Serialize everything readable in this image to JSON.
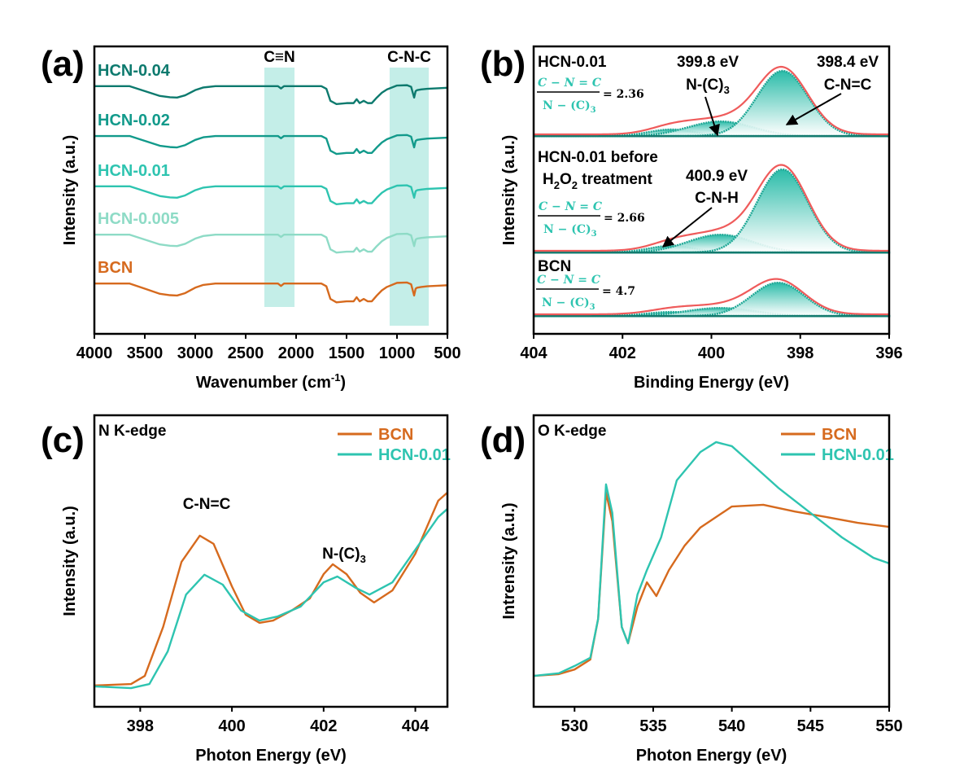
{
  "chart_data": [
    {
      "panel": "(a)",
      "type": "line",
      "xlabel": "Wavenumber (cm",
      "xlabel_sup": "-1",
      "xlabel_end": ")",
      "ylabel": "Intensity (a.u.)",
      "xlim": [
        4000,
        500
      ],
      "ylim": [
        0,
        6
      ],
      "xticks": [
        4000,
        3500,
        3000,
        2500,
        2000,
        1500,
        1000,
        500
      ],
      "bands": [
        {
          "label": "C≡N",
          "range": [
            2315,
            2016
          ],
          "color": "#c4eee8"
        },
        {
          "label": "C-N-C",
          "range": [
            1073,
            685
          ],
          "color": "#c4eee8"
        }
      ],
      "x": [
        4000,
        3650,
        3500,
        3350,
        3250,
        3180,
        3100,
        3000,
        2920,
        2800,
        2300,
        2180,
        2150,
        2120,
        1750,
        1700,
        1660,
        1600,
        1500,
        1430,
        1400,
        1370,
        1330,
        1290,
        1250,
        1200,
        1150,
        1100,
        1000,
        900,
        860,
        830,
        815,
        800,
        760,
        700,
        500
      ],
      "shape": [
        0,
        0,
        -0.15,
        -0.3,
        -0.34,
        -0.35,
        -0.28,
        -0.12,
        -0.04,
        0,
        0,
        0,
        -0.07,
        0,
        0,
        -0.08,
        -0.45,
        -0.55,
        -0.52,
        -0.52,
        -0.4,
        -0.52,
        -0.45,
        -0.52,
        -0.52,
        -0.35,
        -0.2,
        -0.1,
        0.02,
        0.03,
        -0.02,
        -0.35,
        -0.15,
        -0.12,
        -0.1,
        -0.08,
        -0.05
      ],
      "series": [
        {
          "name": "HCN-0.04",
          "offset": 5.17,
          "color": "#0d7a6e"
        },
        {
          "name": "HCN-0.02",
          "offset": 4.13,
          "color": "#129a8b"
        },
        {
          "name": "HCN-0.01",
          "offset": 3.08,
          "color": "#2ec4b0"
        },
        {
          "name": "HCN-0.005",
          "offset": 2.07,
          "color": "#8edbc6"
        },
        {
          "name": "BCN",
          "offset": 1.05,
          "color": "#d66a1e"
        }
      ]
    },
    {
      "panel": "(b)",
      "type": "line",
      "xlabel": "Binding Energy (eV)",
      "ylabel": "Intensity (a.u.)",
      "xlim": [
        404,
        396
      ],
      "ylim": [
        0,
        100
      ],
      "xticks": [
        404,
        402,
        400,
        398,
        396
      ],
      "envelope_color": "#ef5b5b",
      "component_color": "#1fa896",
      "peak_labels": [
        {
          "energy": "399.8 eV",
          "species": "N-(C)",
          "sub": "3"
        },
        {
          "energy": "398.4 eV",
          "species": "C-N=C"
        },
        {
          "energy": "400.9 eV",
          "species": "C-N-H"
        }
      ],
      "ratio_num": "C − N = C",
      "ratio_den": "N − (C)",
      "ratio_den_sub": "3",
      "stacks": [
        {
          "name": "HCN-0.01",
          "baseline": 68.8,
          "ratio": "= 2.36",
          "components": [
            {
              "center": 398.4,
              "height": 22.7,
              "fwhm": 1.35
            },
            {
              "center": 399.8,
              "height": 5.1,
              "fwhm": 1.7
            },
            {
              "center": 400.9,
              "height": 2.3,
              "fwhm": 1.2
            }
          ]
        },
        {
          "name": "HCN-0.01 before",
          "name2a": "H",
          "name2sub1": "2",
          "name2b": "O",
          "name2sub2": "2",
          "name2c": " treatment",
          "baseline": 28.3,
          "ratio": "= 2.66",
          "components": [
            {
              "center": 398.4,
              "height": 28.9,
              "fwhm": 1.35
            },
            {
              "center": 399.8,
              "height": 6.2,
              "fwhm": 1.7
            },
            {
              "center": 400.9,
              "height": 2.3,
              "fwhm": 1.2
            }
          ]
        },
        {
          "name": "BCN",
          "baseline": 6.2,
          "ratio": "= 4.7",
          "components": [
            {
              "center": 398.5,
              "height": 11.6,
              "fwhm": 1.4
            },
            {
              "center": 399.8,
              "height": 2.8,
              "fwhm": 1.8
            },
            {
              "center": 400.9,
              "height": 1.4,
              "fwhm": 1.3
            }
          ]
        }
      ]
    },
    {
      "panel": "(c)",
      "type": "line",
      "title": "N K-edge",
      "xlabel": "Photon Energy (eV)",
      "ylabel": "Intensity (a.u.)",
      "xlim": [
        397,
        404.7
      ],
      "ylim": [
        0,
        1
      ],
      "xticks": [
        398,
        400,
        402,
        404
      ],
      "legend": "top-right",
      "annotations": [
        {
          "text": "C-N=C",
          "x": 399.3,
          "y": 0.6
        },
        {
          "text": "N-(C)",
          "sub": "3",
          "x": 402.1,
          "y": 0.5
        }
      ],
      "series": [
        {
          "name": "BCN",
          "color": "#d66a1e",
          "x": [
            397,
            397.8,
            398.1,
            398.5,
            398.9,
            399.3,
            399.6,
            400,
            400.3,
            400.6,
            400.9,
            401.3,
            401.7,
            402.0,
            402.2,
            402.5,
            402.8,
            403.1,
            403.5,
            404,
            404.5,
            404.7
          ],
          "y": [
            0.073,
            0.078,
            0.106,
            0.274,
            0.497,
            0.587,
            0.559,
            0.413,
            0.316,
            0.288,
            0.296,
            0.33,
            0.372,
            0.455,
            0.489,
            0.455,
            0.391,
            0.358,
            0.399,
            0.525,
            0.707,
            0.735
          ]
        },
        {
          "name": "HCN-0.01",
          "color": "#2ec4b0",
          "x": [
            397,
            397.8,
            398.2,
            398.6,
            399,
            399.4,
            399.8,
            400.2,
            400.6,
            401,
            401.5,
            402,
            402.3,
            402.7,
            403,
            403.5,
            404,
            404.5,
            404.7
          ],
          "y": [
            0.07,
            0.064,
            0.078,
            0.19,
            0.385,
            0.453,
            0.419,
            0.33,
            0.296,
            0.31,
            0.344,
            0.427,
            0.447,
            0.408,
            0.385,
            0.427,
            0.539,
            0.651,
            0.679
          ]
        }
      ]
    },
    {
      "panel": "(d)",
      "type": "line",
      "title": "O K-edge",
      "xlabel": "Photon Energy (eV)",
      "ylabel": "Intrensity (a.u.)",
      "xlim": [
        527.4,
        550
      ],
      "ylim": [
        0,
        1
      ],
      "xticks": [
        530,
        535,
        540,
        545,
        550
      ],
      "legend": "top-right",
      "series": [
        {
          "name": "BCN",
          "color": "#d66a1e",
          "x": [
            527.4,
            529,
            530,
            531,
            531.5,
            532,
            532.4,
            533,
            533.4,
            534,
            534.6,
            535.2,
            536,
            537,
            538,
            540,
            542,
            544,
            546,
            548,
            550
          ],
          "y": [
            0.106,
            0.112,
            0.128,
            0.162,
            0.302,
            0.735,
            0.637,
            0.274,
            0.218,
            0.344,
            0.427,
            0.38,
            0.469,
            0.553,
            0.615,
            0.687,
            0.693,
            0.67,
            0.651,
            0.631,
            0.617
          ]
        },
        {
          "name": "HCN-0.01",
          "color": "#2ec4b0",
          "x": [
            527.4,
            529,
            530,
            531,
            531.5,
            532,
            532.4,
            533,
            533.4,
            534,
            534.6,
            535.5,
            536.5,
            538,
            539,
            540,
            541,
            543,
            545,
            547,
            549,
            550
          ],
          "y": [
            0.106,
            0.115,
            0.14,
            0.168,
            0.302,
            0.763,
            0.665,
            0.274,
            0.218,
            0.385,
            0.469,
            0.581,
            0.777,
            0.874,
            0.908,
            0.894,
            0.846,
            0.749,
            0.665,
            0.581,
            0.511,
            0.492
          ]
        }
      ]
    }
  ]
}
